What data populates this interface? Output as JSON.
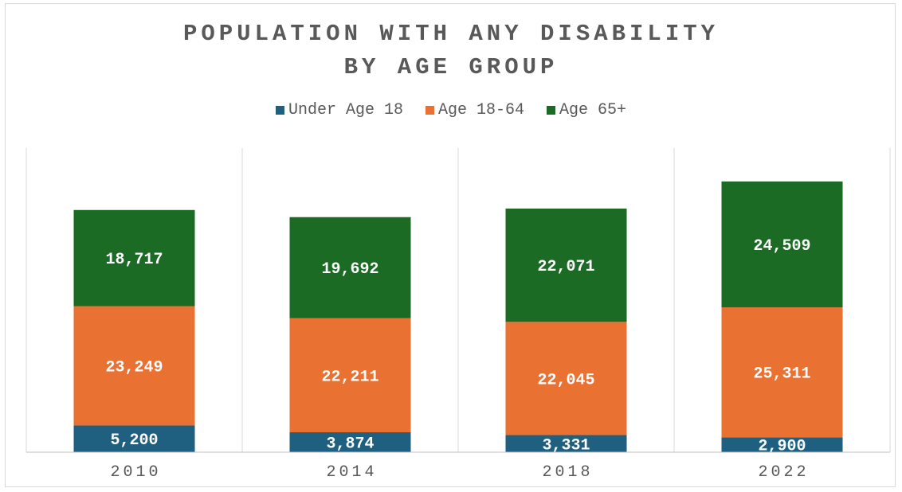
{
  "chart_data": {
    "type": "bar",
    "stacked": true,
    "title": [
      "POPULATION WITH ANY DISABILITY",
      "BY AGE GROUP"
    ],
    "categories": [
      "2010",
      "2014",
      "2018",
      "2022"
    ],
    "series": [
      {
        "name": "Under Age 18",
        "color": "#1f5f80",
        "values": [
          5200,
          3874,
          3331,
          2900
        ],
        "labels": [
          "5,200",
          "3,874",
          "3,331",
          "2,900"
        ]
      },
      {
        "name": "Age 18-64",
        "color": "#e97132",
        "values": [
          23249,
          22211,
          22045,
          25311
        ],
        "labels": [
          "23,249",
          "22,211",
          "22,045",
          "25,311"
        ]
      },
      {
        "name": "Age 65+",
        "color": "#1b6b25",
        "values": [
          18717,
          19692,
          22071,
          24509
        ],
        "labels": [
          "18,717",
          "19,692",
          "22,071",
          "24,509"
        ]
      }
    ],
    "legend_position": "top",
    "grid": "vertical category dividers",
    "ylim": [
      0,
      60000
    ],
    "xlabel": "",
    "ylabel": ""
  }
}
